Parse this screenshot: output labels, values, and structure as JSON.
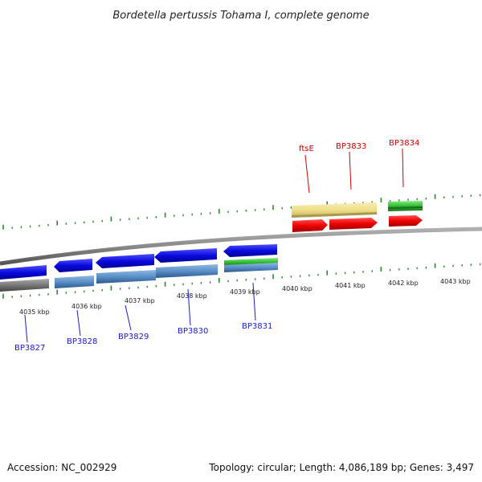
{
  "title": "Bordetella pertussis Tohama I, complete genome",
  "kbp_ticks": [
    "4035 kbp",
    "4036 kbp",
    "4037 kbp",
    "4038 kbp",
    "4039 kbp",
    "4040 kbp",
    "4041 kbp",
    "4042 kbp",
    "4043 kbp"
  ],
  "genes_forward": [
    {
      "label": "ftsE"
    },
    {
      "label": "BP3833"
    },
    {
      "label": "BP3834"
    }
  ],
  "genes_reverse": [
    {
      "label": "BP3827"
    },
    {
      "label": "BP3828"
    },
    {
      "label": "BP3829"
    },
    {
      "label": "BP3830"
    },
    {
      "label": "BP3831"
    }
  ],
  "colors": {
    "backbone": "#8a8a8a",
    "cds": "#ff0000",
    "cds_reverse": "#1010e0",
    "gene_reverse": "#5a8fc8",
    "gene_grey": "#777777",
    "rna": "#3cc03c",
    "feature_yellow": "#eedd88",
    "tick": "#2a8a2a",
    "label_forward": "#cc0000",
    "label_reverse": "#1a1acc"
  },
  "footer": {
    "accession": "Accession: NC_002929",
    "summary": "Topology: circular; Length: 4,086,189 bp; Genes: 3,497"
  }
}
